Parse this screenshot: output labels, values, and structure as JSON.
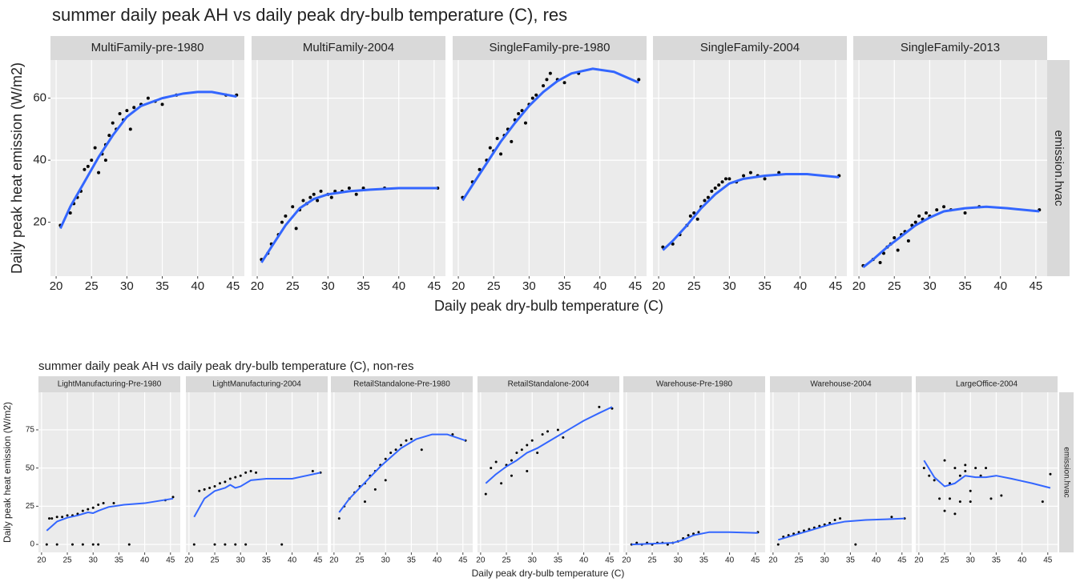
{
  "chart_data": [
    {
      "type": "scatter",
      "title": "summer daily peak AH vs daily peak dry-bulb temperature (C), res",
      "xlabel": "Daily peak dry-bulb temperature (C)",
      "ylabel": "Daily peak heat emission (W/m2)",
      "row_strip": "emission.hvac",
      "point_color": "#000000",
      "smooth_color": "#3366ff",
      "xlim": [
        19.2,
        46.6
      ],
      "xticks": [
        20,
        25,
        30,
        35,
        40,
        45
      ],
      "ylim": [
        2.6,
        72.3
      ],
      "yticks": [
        20,
        40,
        60
      ],
      "grid": true,
      "panels": [
        {
          "name": "MultiFamily-pre-1980",
          "x": [
            20.6,
            22,
            22.5,
            23,
            23.5,
            24,
            24.5,
            25,
            25.5,
            26,
            26.5,
            27,
            27,
            27.5,
            28,
            28.5,
            29,
            29.5,
            30,
            30.5,
            31,
            32,
            33,
            34,
            35,
            37,
            44,
            45.5
          ],
          "y": [
            19,
            23,
            26,
            28,
            30,
            37,
            38,
            40,
            44,
            36,
            42,
            45,
            40,
            48,
            52,
            50,
            55,
            53,
            56,
            50,
            57,
            58,
            60,
            59,
            58,
            61,
            61,
            61
          ],
          "smooth_x": [
            20.6,
            22,
            24,
            26,
            28,
            30,
            32,
            35,
            38,
            40,
            42,
            45.5
          ],
          "smooth_y": [
            18,
            25,
            33,
            41,
            48,
            54,
            57.5,
            60,
            61.5,
            62,
            62,
            60.5
          ]
        },
        {
          "name": "MultiFamily-2004",
          "x": [
            20.6,
            21.5,
            22,
            23,
            23.5,
            24,
            25,
            25.5,
            26,
            26.5,
            27,
            27.5,
            28,
            28.5,
            29,
            30,
            30.5,
            31,
            32,
            33,
            34,
            35,
            38,
            45.5
          ],
          "y": [
            8,
            10,
            13,
            16,
            20,
            22,
            25,
            18,
            24,
            27,
            26,
            28,
            29,
            27,
            30,
            29,
            28,
            30,
            30,
            31,
            29,
            31,
            31,
            31
          ],
          "smooth_x": [
            20.6,
            22,
            24,
            26,
            28,
            30,
            33,
            36,
            40,
            45.5
          ],
          "smooth_y": [
            7,
            12,
            19,
            24.5,
            27.5,
            29,
            30,
            30.5,
            31,
            31
          ]
        },
        {
          "name": "SingleFamily-pre-1980",
          "x": [
            20.6,
            22,
            23,
            24,
            24.5,
            25,
            25.5,
            26,
            26.5,
            27,
            27.5,
            28,
            28.5,
            29,
            29.5,
            30,
            30.5,
            31,
            32,
            32.5,
            33,
            34,
            35,
            37,
            45.5
          ],
          "y": [
            28,
            33,
            37,
            40,
            44,
            43,
            47,
            42,
            48,
            50,
            46,
            53,
            55,
            56,
            52,
            58,
            60,
            61,
            64,
            66,
            68,
            66,
            65,
            68,
            66
          ],
          "smooth_x": [
            20.6,
            22,
            24,
            26,
            28,
            30,
            32,
            34,
            36,
            39,
            42,
            45.5
          ],
          "smooth_y": [
            27,
            32,
            39,
            46,
            52,
            57.5,
            62,
            65.5,
            68,
            69.5,
            68.5,
            65
          ]
        },
        {
          "name": "SingleFamily-2004",
          "x": [
            20.6,
            22,
            23,
            24,
            24.5,
            25,
            25.5,
            26,
            26.5,
            27,
            27.5,
            28,
            28.5,
            29,
            29.5,
            30,
            31,
            32,
            33,
            34,
            35,
            37,
            45.5
          ],
          "y": [
            12,
            13,
            16,
            19,
            22,
            23,
            21,
            25,
            27,
            28,
            30,
            31,
            32,
            33,
            34,
            34,
            33,
            35,
            36,
            35,
            34,
            36,
            35
          ],
          "smooth_x": [
            20.6,
            22,
            24,
            26,
            28,
            30,
            32,
            35,
            38,
            41,
            45.5
          ],
          "smooth_y": [
            11,
            14,
            19,
            24.5,
            29,
            32.5,
            34,
            35,
            35.5,
            35.5,
            34.5
          ]
        },
        {
          "name": "SingleFamily-2013",
          "x": [
            20.6,
            22,
            23,
            23.5,
            24,
            24.5,
            25,
            25.5,
            26,
            26.5,
            27,
            27.5,
            28,
            28.5,
            29,
            29.5,
            30,
            31,
            32,
            33,
            35,
            37,
            45.5
          ],
          "y": [
            6,
            8,
            7,
            10,
            12,
            13,
            15,
            11,
            16,
            17,
            14,
            19,
            20,
            22,
            21,
            23,
            22,
            24,
            25,
            24,
            23,
            25,
            24
          ],
          "smooth_x": [
            20.6,
            22,
            24,
            26,
            28,
            30,
            32,
            35,
            38,
            41,
            45.5
          ],
          "smooth_y": [
            5.5,
            8,
            12,
            15.5,
            19,
            21.5,
            23.5,
            24.5,
            25,
            24.5,
            23.5
          ]
        }
      ]
    },
    {
      "type": "scatter",
      "title": "summer daily peak AH vs daily peak dry-bulb temperature (C), non-res",
      "xlabel": "Daily peak dry-bulb temperature (C)",
      "ylabel": "Daily peak heat emission (W/m2)",
      "row_strip": "emission.hvac",
      "point_color": "#000000",
      "smooth_color": "#3366ff",
      "xlim": [
        19.4,
        46.9
      ],
      "xticks": [
        20,
        25,
        30,
        35,
        40,
        45
      ],
      "ylim": [
        -5.2,
        99.6
      ],
      "yticks": [
        0,
        25,
        50,
        75
      ],
      "grid": true,
      "panels": [
        {
          "name": "LightManufacturing-Pre-1980",
          "x": [
            21.5,
            22,
            23,
            24,
            25,
            26,
            27,
            28,
            29,
            30,
            31,
            32,
            34,
            44,
            45.5,
            21,
            23,
            26,
            28,
            30,
            31,
            37
          ],
          "y": [
            17,
            17,
            18,
            18,
            19,
            19,
            20,
            22,
            23,
            24,
            26,
            27,
            27,
            29,
            31,
            0,
            0,
            0,
            0,
            0,
            0,
            0
          ],
          "smooth_x": [
            21,
            23,
            25,
            27,
            29,
            30,
            31,
            33,
            36,
            40,
            45.5
          ],
          "smooth_y": [
            9,
            15,
            17.5,
            19,
            21,
            20.5,
            22,
            24.5,
            26,
            27,
            30
          ]
        },
        {
          "name": "LightManufacturing-2004",
          "x": [
            22,
            23,
            24,
            25,
            26,
            27,
            28,
            29,
            30,
            31,
            32,
            33,
            44,
            21,
            25,
            27,
            29,
            31,
            38,
            45.5
          ],
          "y": [
            35,
            36,
            37,
            38,
            40,
            41,
            43,
            44,
            45,
            47,
            48,
            47,
            48,
            0,
            0,
            0,
            0,
            0,
            0,
            47
          ],
          "smooth_x": [
            21,
            23,
            25,
            27,
            28,
            29,
            30,
            32,
            35,
            40,
            45.5
          ],
          "smooth_y": [
            18,
            30,
            35,
            37,
            39,
            37,
            38,
            42,
            43,
            43,
            47
          ]
        },
        {
          "name": "RetailStandalone-Pre-1980",
          "x": [
            21,
            22,
            23,
            24,
            25,
            26,
            26,
            27,
            28,
            28,
            29,
            30,
            30,
            31,
            32,
            33,
            34,
            35,
            37,
            43,
            45.5
          ],
          "y": [
            17,
            25,
            30,
            34,
            38,
            40,
            28,
            45,
            48,
            36,
            52,
            56,
            42,
            60,
            62,
            65,
            68,
            69,
            62,
            72,
            68
          ],
          "smooth_x": [
            21,
            23,
            25,
            27,
            29,
            31,
            33,
            36,
            39,
            42,
            45.5
          ],
          "smooth_y": [
            21,
            30,
            37,
            44,
            51,
            57,
            63,
            69,
            72,
            72,
            68
          ]
        },
        {
          "name": "RetailStandalone-2004",
          "x": [
            21,
            22,
            23,
            24,
            25,
            26,
            26,
            27,
            28,
            29,
            29,
            30,
            31,
            32,
            33,
            35,
            36,
            43,
            45.5
          ],
          "y": [
            33,
            50,
            54,
            40,
            52,
            55,
            45,
            60,
            62,
            65,
            48,
            68,
            60,
            72,
            74,
            75,
            70,
            90,
            89
          ],
          "smooth_x": [
            21,
            23,
            25,
            27,
            29,
            31,
            34,
            37,
            40,
            43,
            45.5
          ],
          "smooth_y": [
            40,
            46,
            51,
            55,
            60,
            63,
            69,
            75,
            81,
            86,
            90
          ]
        },
        {
          "name": "Warehouse-Pre-1980",
          "x": [
            21,
            22,
            23,
            24,
            25,
            26,
            27,
            28,
            29,
            30,
            31,
            32,
            33,
            34,
            45.5
          ],
          "y": [
            0,
            1,
            0,
            1,
            0,
            1,
            1,
            0,
            1,
            2,
            4,
            6,
            7,
            8,
            8
          ],
          "smooth_x": [
            21,
            25,
            29,
            31,
            33,
            36,
            40,
            45.5
          ],
          "smooth_y": [
            0,
            0.5,
            1,
            3,
            6,
            8,
            8,
            7.5
          ]
        },
        {
          "name": "Warehouse-2004",
          "x": [
            21,
            22,
            23,
            24,
            25,
            26,
            27,
            28,
            29,
            30,
            31,
            32,
            33,
            36,
            43,
            45.5
          ],
          "y": [
            0,
            5,
            6,
            7,
            8,
            9,
            10,
            11,
            12,
            13,
            14,
            16,
            17,
            0,
            18,
            17
          ],
          "smooth_x": [
            21,
            23,
            25,
            27,
            29,
            31,
            34,
            38,
            42,
            45.5
          ],
          "smooth_y": [
            3,
            5,
            7,
            9,
            11,
            13,
            15,
            16,
            16.5,
            17
          ]
        },
        {
          "name": "LargeOffice-2004",
          "x": [
            21,
            22,
            23,
            24,
            25,
            25,
            26,
            26,
            27,
            27,
            28,
            28,
            29,
            29,
            30,
            30,
            31,
            32,
            33,
            34,
            36,
            44,
            45.5
          ],
          "y": [
            50,
            45,
            42,
            30,
            55,
            22,
            40,
            30,
            50,
            20,
            45,
            28,
            52,
            48,
            35,
            28,
            50,
            45,
            50,
            30,
            32,
            28,
            46
          ],
          "smooth_x": [
            21,
            23,
            25,
            27,
            29,
            31,
            33,
            35,
            38,
            42,
            45.5
          ],
          "smooth_y": [
            55,
            44,
            38,
            40,
            45,
            44,
            44,
            45,
            43,
            40,
            37
          ]
        }
      ]
    }
  ]
}
